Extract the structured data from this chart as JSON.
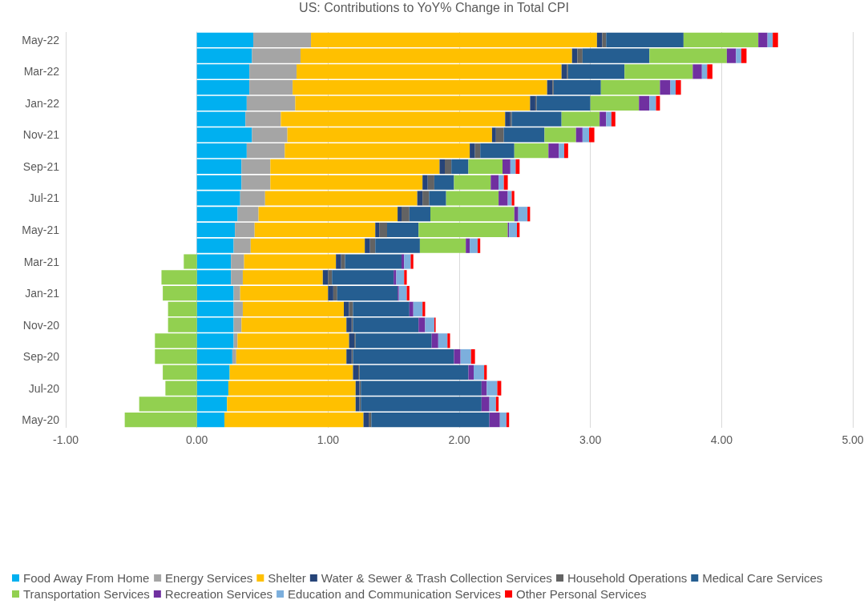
{
  "chart_data": {
    "type": "bar",
    "title": "US: Contributions to YoY% Change in Total CPI",
    "orientation": "horizontal",
    "stacked": true,
    "legend": "bottom",
    "grid": "x",
    "categories": [
      "May-22",
      null,
      "Mar-22",
      null,
      "Jan-22",
      null,
      "Nov-21",
      null,
      "Sep-21",
      null,
      "Jul-21",
      null,
      "May-21",
      null,
      "Mar-21",
      null,
      "Jan-21",
      null,
      "Nov-20",
      null,
      "Sep-20",
      null,
      "Jul-20",
      null,
      "May-20"
    ],
    "xlim": [
      -1,
      5
    ],
    "xticks": [
      {
        "value": -1,
        "label": "-1.00"
      },
      {
        "value": 0,
        "label": "0.00"
      },
      {
        "value": 1,
        "label": "1.00"
      },
      {
        "value": 2,
        "label": "2.00"
      },
      {
        "value": 3,
        "label": "3.00"
      },
      {
        "value": 4,
        "label": "4.00"
      },
      {
        "value": 5,
        "label": "5.00"
      }
    ],
    "series": [
      {
        "name": "Food Away From Home",
        "color": "#00b0f0",
        "values": [
          0.43,
          0.42,
          0.4,
          0.4,
          0.38,
          0.37,
          0.42,
          0.38,
          0.34,
          0.34,
          0.33,
          0.31,
          0.29,
          0.28,
          0.26,
          0.26,
          0.28,
          0.28,
          0.28,
          0.28,
          0.27,
          0.25,
          0.24,
          0.23,
          0.21
        ]
      },
      {
        "name": "Energy Services",
        "color": "#a5a5a5",
        "values": [
          0.44,
          0.37,
          0.36,
          0.33,
          0.37,
          0.27,
          0.27,
          0.29,
          0.22,
          0.22,
          0.19,
          0.16,
          0.15,
          0.13,
          0.1,
          0.09,
          0.05,
          0.07,
          0.06,
          0.03,
          0.03,
          0,
          0,
          0,
          0
        ]
      },
      {
        "name": "Shelter",
        "color": "#ffc000",
        "values": [
          2.18,
          2.07,
          2.02,
          1.94,
          1.79,
          1.71,
          1.56,
          1.41,
          1.29,
          1.16,
          1.16,
          1.06,
          0.92,
          0.87,
          0.7,
          0.61,
          0.67,
          0.77,
          0.8,
          0.85,
          0.84,
          0.94,
          0.97,
          0.98,
          1.06
        ]
      },
      {
        "name": "Water & Sewer & Trash Collection Services",
        "color": "#264478",
        "values": [
          0.04,
          0.04,
          0.04,
          0.04,
          0.04,
          0.04,
          0.03,
          0.04,
          0.04,
          0.04,
          0.04,
          0.03,
          0.03,
          0.04,
          0.04,
          0.04,
          0.04,
          0.04,
          0.04,
          0.04,
          0.04,
          0.04,
          0.03,
          0.03,
          0.04
        ]
      },
      {
        "name": "Household Operations",
        "color": "#636363",
        "values": [
          0.03,
          0.04,
          0.01,
          0.01,
          0.01,
          0.01,
          0.06,
          0.04,
          0.05,
          0.05,
          0.05,
          0.06,
          0.06,
          0.04,
          0.03,
          0.03,
          0.03,
          0.03,
          0.01,
          0.01,
          0.01,
          0.01,
          0.01,
          0.01,
          0.02
        ]
      },
      {
        "name": "Medical Care Services",
        "color": "#255e91",
        "values": [
          0.59,
          0.51,
          0.43,
          0.36,
          0.41,
          0.38,
          0.31,
          0.26,
          0.13,
          0.15,
          0.13,
          0.16,
          0.24,
          0.34,
          0.43,
          0.47,
          0.46,
          0.43,
          0.5,
          0.58,
          0.77,
          0.83,
          0.92,
          0.92,
          0.9
        ]
      },
      {
        "name": "Transportation Services",
        "color": "#92d050",
        "values": [
          0.57,
          0.59,
          0.52,
          0.45,
          0.37,
          0.29,
          0.24,
          0.26,
          0.26,
          0.28,
          0.4,
          0.64,
          0.68,
          0.35,
          -0.1,
          -0.27,
          -0.26,
          -0.22,
          -0.22,
          -0.32,
          -0.32,
          -0.26,
          -0.24,
          -0.44,
          -0.55
        ]
      },
      {
        "name": "Recreation Services",
        "color": "#7030a0",
        "values": [
          0.07,
          0.07,
          0.07,
          0.08,
          0.08,
          0.05,
          0.05,
          0.08,
          0.06,
          0.06,
          0.07,
          0.03,
          0.01,
          0.03,
          0.02,
          0.02,
          0.01,
          0.03,
          0.05,
          0.05,
          0.05,
          0.04,
          0.04,
          0.06,
          0.08
        ]
      },
      {
        "name": "Education and Communication Services",
        "color": "#7cafdd",
        "values": [
          0.04,
          0.04,
          0.04,
          0.04,
          0.05,
          0.04,
          0.05,
          0.04,
          0.04,
          0.04,
          0.03,
          0.07,
          0.06,
          0.06,
          0.05,
          0.06,
          0.06,
          0.07,
          0.07,
          0.07,
          0.08,
          0.08,
          0.08,
          0.05,
          0.05
        ]
      },
      {
        "name": "Other Personal Services",
        "color": "#ff0000",
        "values": [
          0.04,
          0.04,
          0.04,
          0.04,
          0.03,
          0.03,
          0.04,
          0.03,
          0.03,
          0.03,
          0.02,
          0.02,
          0.02,
          0.02,
          0.02,
          0.02,
          0.02,
          0.02,
          0.01,
          0.02,
          0.03,
          0.02,
          0.03,
          0.02,
          0.02
        ]
      }
    ]
  }
}
